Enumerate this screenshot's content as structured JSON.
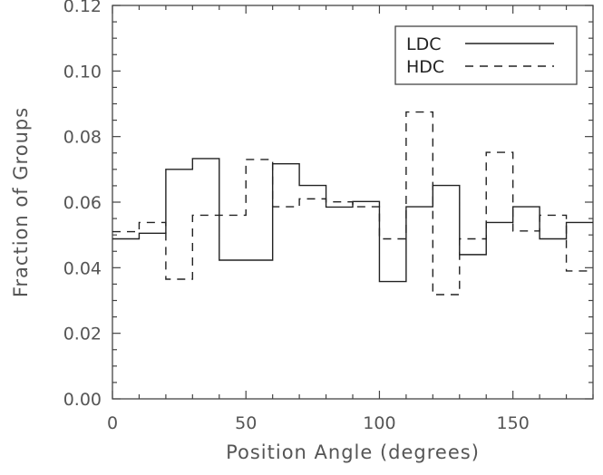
{
  "chart_data": {
    "type": "line",
    "xlabel": "Position Angle (degrees)",
    "ylabel": "Fraction of Groups",
    "xlim": [
      0,
      180
    ],
    "ylim": [
      0,
      0.12
    ],
    "x_ticks": [
      0,
      50,
      100,
      150
    ],
    "y_ticks": [
      0.0,
      0.02,
      0.04,
      0.06,
      0.08,
      0.1,
      0.12
    ],
    "y_tick_labels": [
      "0.00",
      "0.02",
      "0.04",
      "0.06",
      "0.08",
      "0.10",
      "0.12"
    ],
    "grid": false,
    "legend_position": "top-right",
    "bin_edges": [
      0,
      10,
      20,
      30,
      40,
      50,
      60,
      70,
      80,
      90,
      100,
      110,
      120,
      130,
      140,
      150,
      160,
      170,
      180
    ],
    "series": [
      {
        "name": "LDC",
        "style": "solid",
        "values": [
          0.0488,
          0.0505,
          0.07,
          0.0733,
          0.0423,
          0.0423,
          0.0717,
          0.0651,
          0.0585,
          0.0602,
          0.0358,
          0.0586,
          0.0651,
          0.044,
          0.0538,
          0.0586,
          0.0488,
          0.0538
        ]
      },
      {
        "name": "HDC",
        "style": "dashed",
        "values": [
          0.051,
          0.0538,
          0.0365,
          0.056,
          0.056,
          0.073,
          0.0586,
          0.061,
          0.0601,
          0.0586,
          0.0488,
          0.0875,
          0.0318,
          0.0488,
          0.0752,
          0.0512,
          0.056,
          0.039
        ]
      }
    ],
    "colors": {
      "line": "#222222",
      "axis": "#444444",
      "text": "#555555"
    }
  }
}
